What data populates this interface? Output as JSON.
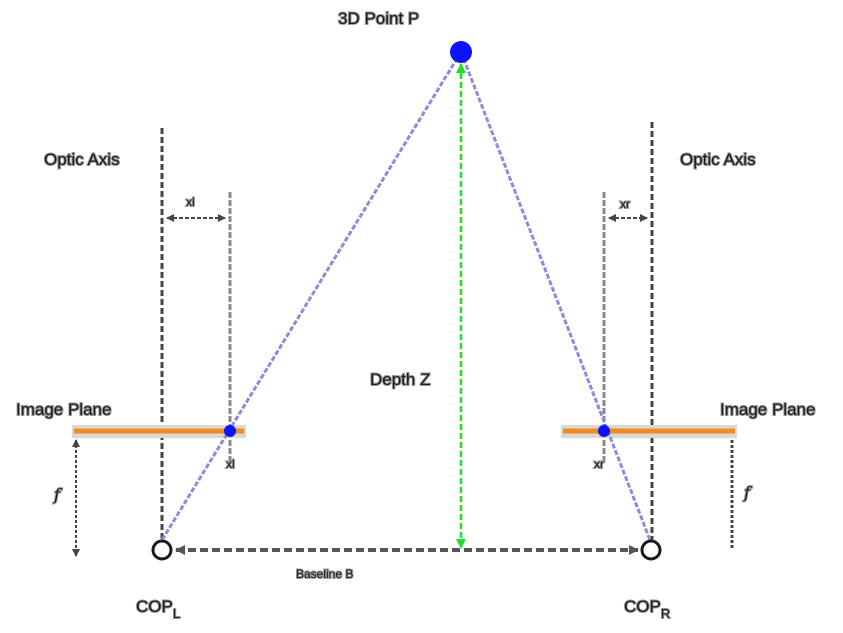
{
  "point_label": "3D Point P",
  "depth_label": "Depth Z",
  "baseline_label": "Baseline B",
  "left": {
    "optic_axis_label": "Optic Axis",
    "image_plane_label": "Image Plane",
    "focal_label": "f",
    "x_label": "xl",
    "x_short_label": "xl",
    "cop_label": "COP",
    "cop_sub": "L"
  },
  "right": {
    "optic_axis_label": "Optic Axis",
    "image_plane_label": "Image Plane",
    "focal_label": "f",
    "x_label": "xr",
    "x_short_label": "xr",
    "cop_label": "COP",
    "cop_sub": "R"
  },
  "colors": {
    "image_plane": "#f08c1e",
    "point": "#0a14ff",
    "ray": "#8c8cdc",
    "depth": "#22dd22",
    "axis": "#444444",
    "guide": "#888888"
  }
}
